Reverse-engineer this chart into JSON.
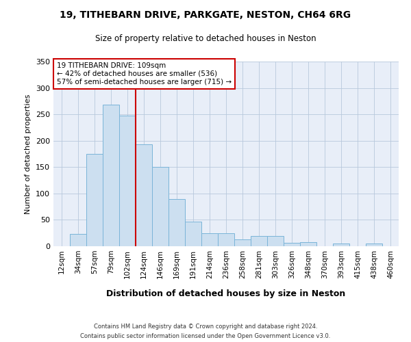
{
  "title1": "19, TITHEBARN DRIVE, PARKGATE, NESTON, CH64 6RG",
  "title2": "Size of property relative to detached houses in Neston",
  "xlabel": "Distribution of detached houses by size in Neston",
  "ylabel": "Number of detached properties",
  "categories": [
    "12sqm",
    "34sqm",
    "57sqm",
    "79sqm",
    "102sqm",
    "124sqm",
    "146sqm",
    "169sqm",
    "191sqm",
    "214sqm",
    "236sqm",
    "258sqm",
    "281sqm",
    "303sqm",
    "326sqm",
    "348sqm",
    "370sqm",
    "393sqm",
    "415sqm",
    "438sqm",
    "460sqm"
  ],
  "values": [
    0,
    23,
    175,
    268,
    247,
    193,
    150,
    90,
    47,
    25,
    25,
    13,
    20,
    20,
    6,
    8,
    0,
    5,
    0,
    5,
    0
  ],
  "bar_color": "#ccdff0",
  "bar_edge_color": "#7ab4d8",
  "grid_color": "#b8c8dc",
  "background_color": "#e8eef8",
  "vline_color": "#cc0000",
  "annotation_title": "19 TITHEBARN DRIVE: 109sqm",
  "annotation_line1": "← 42% of detached houses are smaller (536)",
  "annotation_line2": "57% of semi-detached houses are larger (715) →",
  "annotation_box_color": "#ffffff",
  "annotation_border_color": "#cc0000",
  "footer1": "Contains HM Land Registry data © Crown copyright and database right 2024.",
  "footer2": "Contains public sector information licensed under the Open Government Licence v3.0.",
  "ylim": [
    0,
    350
  ],
  "yticks": [
    0,
    50,
    100,
    150,
    200,
    250,
    300,
    350
  ],
  "vline_position": 4.5
}
